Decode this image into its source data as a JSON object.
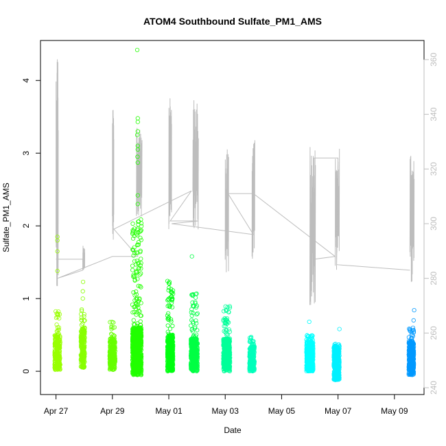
{
  "chart_data": {
    "type": "scatter",
    "title": "ATOM4 Southbound Sulfate_PM1_AMS",
    "xlabel": "Date",
    "ylabel": "Sulfate_PM1_AMS",
    "x_tick_labels": [
      "Apr 27",
      "Apr 29",
      "May 01",
      "May 03",
      "May 05",
      "May 07",
      "May 09"
    ],
    "x_tick_days": [
      0,
      2,
      4,
      6,
      8,
      10,
      12
    ],
    "xlim_days": [
      -0.55,
      13.05
    ],
    "ylim": [
      -0.32,
      4.55
    ],
    "y_ticks": [
      0,
      1,
      2,
      3,
      4
    ],
    "y2_label": "",
    "y2lim": [
      237.5,
      367
    ],
    "y2_ticks": [
      240,
      260,
      280,
      300,
      320,
      340,
      360
    ],
    "grid": false,
    "marker": "open-circle",
    "color_scale": "rainbow hue by time (yellow-green to blue)",
    "sulfate_clusters": [
      {
        "center_day": 0.05,
        "spread_day": 0.1,
        "n": 260,
        "base_lo": 0.02,
        "base_hi": 0.5,
        "peak_hi": 0.85,
        "color": "#99ff00",
        "outliers": [
          {
            "day": 0.05,
            "value": 1.85
          },
          {
            "day": 0.05,
            "value": 1.8
          },
          {
            "day": 0.05,
            "value": 1.65
          },
          {
            "day": 0.05,
            "value": 1.38
          }
        ]
      },
      {
        "center_day": 0.95,
        "spread_day": 0.07,
        "n": 220,
        "base_lo": 0.05,
        "base_hi": 0.6,
        "peak_hi": 0.85,
        "color": "#88ff00",
        "outliers": [
          {
            "day": 0.96,
            "value": 1.23
          },
          {
            "day": 0.95,
            "value": 1.1
          },
          {
            "day": 0.95,
            "value": 1.0
          }
        ]
      },
      {
        "center_day": 2.0,
        "spread_day": 0.1,
        "n": 260,
        "base_lo": 0.02,
        "base_hi": 0.45,
        "peak_hi": 0.68,
        "color": "#66ff00",
        "outliers": []
      },
      {
        "center_day": 2.87,
        "spread_day": 0.16,
        "n": 900,
        "base_lo": -0.05,
        "base_hi": 0.6,
        "peak_hi": 2.1,
        "color": "#22ff00",
        "outliers": [
          {
            "day": 2.88,
            "value": 4.42
          },
          {
            "day": 2.9,
            "value": 3.48
          },
          {
            "day": 2.9,
            "value": 3.43
          },
          {
            "day": 2.9,
            "value": 3.3
          },
          {
            "day": 2.88,
            "value": 3.25
          },
          {
            "day": 2.9,
            "value": 3.1
          },
          {
            "day": 2.9,
            "value": 3.05
          },
          {
            "day": 2.89,
            "value": 2.95
          },
          {
            "day": 2.9,
            "value": 2.87
          },
          {
            "day": 2.9,
            "value": 2.42
          },
          {
            "day": 2.9,
            "value": 2.3
          }
        ]
      },
      {
        "center_day": 4.05,
        "spread_day": 0.1,
        "n": 420,
        "base_lo": 0.0,
        "base_hi": 0.5,
        "peak_hi": 1.25,
        "color": "#00ff11",
        "outliers": []
      },
      {
        "center_day": 4.9,
        "spread_day": 0.12,
        "n": 420,
        "base_lo": 0.0,
        "base_hi": 0.45,
        "peak_hi": 1.08,
        "color": "#00ff44",
        "outliers": [
          {
            "day": 4.82,
            "value": 1.58
          }
        ]
      },
      {
        "center_day": 6.05,
        "spread_day": 0.12,
        "n": 420,
        "base_lo": 0.0,
        "base_hi": 0.45,
        "peak_hi": 0.9,
        "color": "#00ff99",
        "outliers": []
      },
      {
        "center_day": 6.95,
        "spread_day": 0.09,
        "n": 260,
        "base_lo": 0.0,
        "base_hi": 0.35,
        "peak_hi": 0.48,
        "color": "#00ffbb",
        "outliers": []
      },
      {
        "center_day": 9.0,
        "spread_day": 0.12,
        "n": 500,
        "base_lo": 0.0,
        "base_hi": 0.4,
        "peak_hi": 0.5,
        "color": "#00ffff",
        "outliers": [
          {
            "day": 8.98,
            "value": 0.68
          }
        ]
      },
      {
        "center_day": 9.95,
        "spread_day": 0.1,
        "n": 420,
        "base_lo": -0.12,
        "base_hi": 0.35,
        "peak_hi": 0.38,
        "color": "#00f0ff",
        "outliers": [
          {
            "day": 10.05,
            "value": 0.58
          }
        ]
      },
      {
        "center_day": 12.6,
        "spread_day": 0.09,
        "n": 420,
        "base_lo": -0.05,
        "base_hi": 0.42,
        "peak_hi": 0.62,
        "color": "#0099ff",
        "outliers": [
          {
            "day": 12.7,
            "value": 0.84
          },
          {
            "day": 12.68,
            "value": 0.7
          }
        ]
      }
    ],
    "gray_series": {
      "name": "",
      "color": "#bdbdbd",
      "bursts": [
        {
          "start_day": 0.0,
          "end_day": 0.08,
          "lo": 275,
          "hi": 361
        },
        {
          "start_day": 0.95,
          "end_day": 1.02,
          "lo": 283,
          "hi": 292
        },
        {
          "start_day": 2.0,
          "end_day": 2.05,
          "lo": 292,
          "hi": 343
        },
        {
          "start_day": 2.85,
          "end_day": 3.05,
          "lo": 300,
          "hi": 335
        },
        {
          "start_day": 4.0,
          "end_day": 4.1,
          "lo": 298,
          "hi": 350
        },
        {
          "start_day": 4.85,
          "end_day": 5.05,
          "lo": 296,
          "hi": 346
        },
        {
          "start_day": 6.0,
          "end_day": 6.12,
          "lo": 281,
          "hi": 328
        },
        {
          "start_day": 6.95,
          "end_day": 7.05,
          "lo": 287,
          "hi": 331
        },
        {
          "start_day": 9.0,
          "end_day": 9.2,
          "lo": 269,
          "hi": 328
        },
        {
          "start_day": 9.9,
          "end_day": 10.05,
          "lo": 281,
          "hi": 328
        },
        {
          "start_day": 12.55,
          "end_day": 12.7,
          "lo": 278,
          "hi": 325
        }
      ],
      "path": [
        {
          "day": 0.0,
          "value": 287
        },
        {
          "day": 0.95,
          "value": 287
        },
        {
          "day": 0.95,
          "value": 283
        },
        {
          "day": 0.05,
          "value": 280
        },
        {
          "day": 2.0,
          "value": 288
        },
        {
          "day": 2.9,
          "value": 288
        },
        {
          "day": 2.05,
          "value": 298
        },
        {
          "day": 4.8,
          "value": 312
        },
        {
          "day": 4.05,
          "value": 301
        },
        {
          "day": 5.05,
          "value": 301
        },
        {
          "day": 4.1,
          "value": 300
        },
        {
          "day": 7.0,
          "value": 296
        },
        {
          "day": 6.1,
          "value": 311
        },
        {
          "day": 7.0,
          "value": 311
        },
        {
          "day": 9.9,
          "value": 288
        },
        {
          "day": 9.15,
          "value": 287
        },
        {
          "day": 9.15,
          "value": 324
        },
        {
          "day": 10.0,
          "value": 324
        },
        {
          "day": 9.95,
          "value": 285
        },
        {
          "day": 12.55,
          "value": 283
        }
      ]
    }
  }
}
